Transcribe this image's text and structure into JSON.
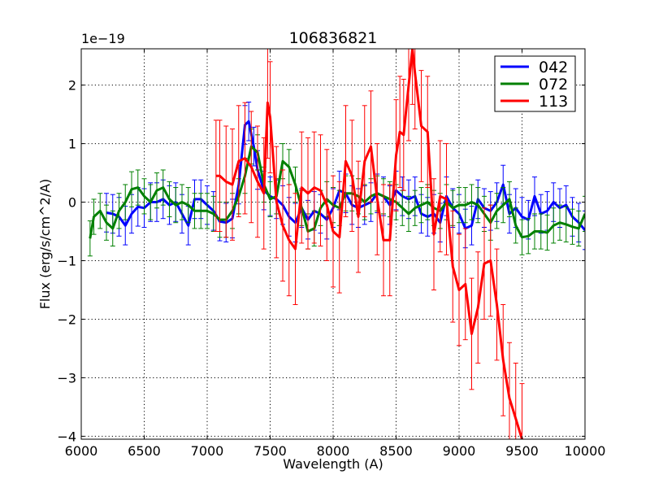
{
  "chart_data": {
    "type": "line",
    "title": "106836821",
    "xlabel": "Wavelength (A)",
    "ylabel": "Flux (erg/s/cm^2/A)",
    "offset_text": "1e−19",
    "xlim": [
      6000,
      10000
    ],
    "ylim": [
      -4.05,
      2.62
    ],
    "xticks": [
      6000,
      6500,
      7000,
      7500,
      8000,
      8500,
      9000,
      9500,
      10000
    ],
    "xtick_labels": [
      "6000",
      "6500",
      "7000",
      "7500",
      "8000",
      "8500",
      "9000",
      "9500",
      "10000"
    ],
    "yticks": [
      2,
      1,
      0,
      -1,
      -2,
      -3,
      -4
    ],
    "ytick_labels": [
      "2",
      "1",
      "0",
      "−1",
      "−2",
      "−3",
      "−4"
    ],
    "grid": true,
    "legend_position": "top-right",
    "series": [
      {
        "name": "042",
        "color": "#0000ff",
        "x": [
          6200,
          6250,
          6300,
          6350,
          6400,
          6450,
          6500,
          6550,
          6600,
          6650,
          6700,
          6750,
          6800,
          6850,
          6900,
          6950,
          7000,
          7050,
          7100,
          7150,
          7200,
          7250,
          7300,
          7330,
          7370,
          7400,
          7450,
          7500,
          7550,
          7600,
          7650,
          7700,
          7750,
          7800,
          7850,
          7900,
          7950,
          8000,
          8050,
          8100,
          8150,
          8200,
          8250,
          8300,
          8350,
          8400,
          8450,
          8500,
          8550,
          8600,
          8650,
          8700,
          8750,
          8800,
          8850,
          8900,
          8950,
          9000,
          9050,
          9100,
          9150,
          9200,
          9250,
          9300,
          9350,
          9400,
          9450,
          9500,
          9550,
          9600,
          9650,
          9700,
          9750,
          9800,
          9850,
          9900,
          9950,
          10000
        ],
        "y": [
          -0.18,
          -0.2,
          -0.25,
          -0.4,
          -0.2,
          -0.08,
          -0.1,
          0.0,
          0.0,
          0.05,
          -0.05,
          0.0,
          -0.2,
          -0.4,
          0.05,
          0.05,
          -0.05,
          -0.15,
          -0.33,
          -0.35,
          -0.28,
          0.3,
          1.32,
          1.38,
          0.95,
          0.55,
          0.2,
          0.1,
          0.05,
          -0.05,
          -0.25,
          -0.35,
          -0.1,
          -0.3,
          -0.15,
          -0.2,
          -0.3,
          -0.1,
          0.2,
          0.15,
          -0.05,
          -0.1,
          -0.05,
          0.0,
          0.15,
          0.1,
          -0.05,
          0.2,
          0.1,
          0.05,
          0.1,
          -0.2,
          -0.25,
          -0.2,
          -0.35,
          0.1,
          -0.1,
          -0.2,
          -0.45,
          -0.4,
          0.05,
          -0.1,
          -0.15,
          0.0,
          0.3,
          -0.2,
          -0.1,
          -0.25,
          -0.3,
          0.1,
          -0.2,
          -0.15,
          0.0,
          -0.1,
          -0.05,
          -0.25,
          -0.35,
          -0.48
        ],
        "err": 0.33
      },
      {
        "name": "072",
        "color": "#008000",
        "x": [
          6070,
          6100,
          6150,
          6200,
          6250,
          6300,
          6350,
          6400,
          6450,
          6500,
          6550,
          6600,
          6650,
          6700,
          6750,
          6800,
          6850,
          6900,
          6950,
          7000,
          7050,
          7100,
          7150,
          7200,
          7250,
          7300,
          7350,
          7400,
          7450,
          7500,
          7550,
          7600,
          7650,
          7700,
          7750,
          7800,
          7850,
          7900,
          7950,
          8000,
          8050,
          8100,
          8150,
          8200,
          8250,
          8300,
          8350,
          8400,
          8450,
          8500,
          8550,
          8600,
          8650,
          8700,
          8750,
          8800,
          8850,
          8900,
          8950,
          9000,
          9050,
          9100,
          9150,
          9200,
          9250,
          9300,
          9350,
          9400,
          9450,
          9500,
          9550,
          9600,
          9650,
          9700,
          9750,
          9800,
          9850,
          9900,
          9950,
          10000
        ],
        "y": [
          -0.62,
          -0.25,
          -0.15,
          -0.35,
          -0.45,
          -0.15,
          0.0,
          0.22,
          0.25,
          0.1,
          0.0,
          0.2,
          0.25,
          0.05,
          -0.05,
          0.0,
          -0.05,
          -0.15,
          -0.15,
          -0.15,
          -0.2,
          -0.3,
          -0.3,
          -0.15,
          0.1,
          0.45,
          0.95,
          0.85,
          0.3,
          0.05,
          0.1,
          0.7,
          0.6,
          0.3,
          -0.1,
          -0.5,
          -0.45,
          -0.1,
          0.05,
          -0.05,
          -0.1,
          0.15,
          0.15,
          0.1,
          0.0,
          0.1,
          0.15,
          0.1,
          0.05,
          0.0,
          -0.1,
          -0.2,
          -0.1,
          -0.05,
          0.0,
          -0.1,
          -0.15,
          0.0,
          -0.1,
          -0.05,
          -0.05,
          0.0,
          -0.05,
          -0.2,
          -0.35,
          -0.15,
          -0.05,
          0.05,
          -0.4,
          -0.6,
          -0.58,
          -0.5,
          -0.5,
          -0.52,
          -0.4,
          -0.35,
          -0.38,
          -0.42,
          -0.45,
          -0.2
        ],
        "err": 0.3
      },
      {
        "name": "113",
        "color": "#ff0000",
        "x": [
          7070,
          7100,
          7150,
          7200,
          7250,
          7300,
          7350,
          7400,
          7450,
          7480,
          7500,
          7550,
          7600,
          7650,
          7700,
          7750,
          7800,
          7850,
          7900,
          7950,
          8000,
          8050,
          8100,
          8150,
          8200,
          8250,
          8300,
          8350,
          8400,
          8450,
          8500,
          8530,
          8560,
          8600,
          8630,
          8650,
          8700,
          8750,
          8800,
          8850,
          8900,
          8950,
          9000,
          9050,
          9100,
          9150,
          9200,
          9250,
          9300,
          9350,
          9400,
          9450,
          9500
        ],
        "y": [
          0.45,
          0.45,
          0.35,
          0.3,
          0.7,
          0.75,
          0.6,
          0.35,
          0.15,
          1.7,
          1.45,
          0.0,
          -0.4,
          -0.65,
          -0.8,
          0.25,
          0.15,
          0.25,
          0.2,
          -0.05,
          -0.5,
          -0.6,
          0.7,
          0.45,
          -0.25,
          0.7,
          0.95,
          0.05,
          -0.65,
          -0.65,
          0.8,
          1.2,
          1.15,
          2.0,
          2.62,
          2.2,
          1.3,
          1.2,
          -0.55,
          0.1,
          0.05,
          -1.1,
          -1.5,
          -1.4,
          -2.25,
          -1.8,
          -1.05,
          -1.0,
          -1.75,
          -2.7,
          -3.35,
          -3.7,
          -4.05
        ],
        "err": 0.95
      }
    ]
  }
}
